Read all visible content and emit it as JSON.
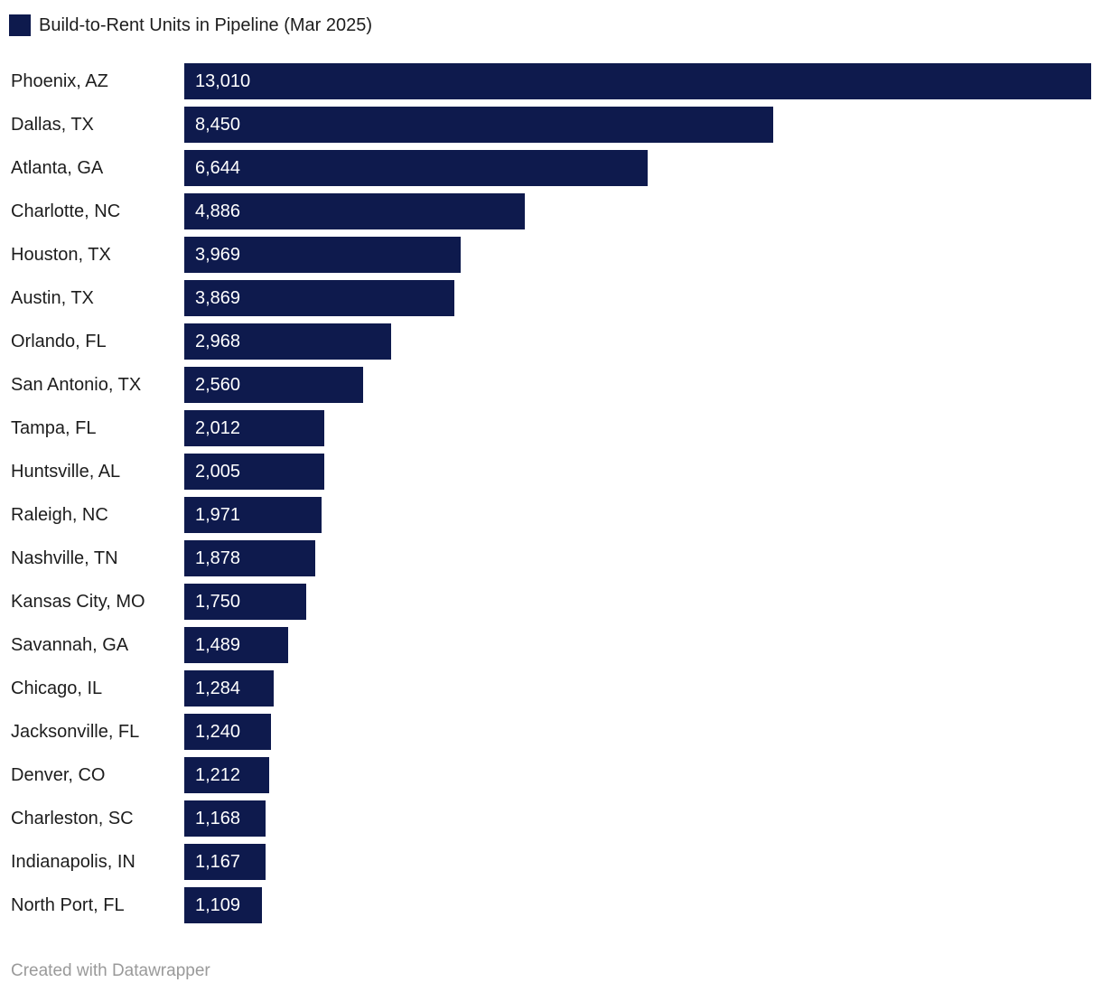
{
  "legend": {
    "label": "Build-to-Rent Units in Pipeline (Mar 2025)",
    "swatch_color": "#0e1a4d"
  },
  "footer": {
    "credit": "Created with Datawrapper"
  },
  "colors": {
    "bar": "#0e1a4d",
    "label_text": "#1d1d1d",
    "value_text": "#ffffff",
    "footer_text": "#9a9a9a",
    "background": "#ffffff"
  },
  "chart_data": {
    "type": "bar",
    "orientation": "horizontal",
    "title": "Build-to-Rent Units in Pipeline (Mar 2025)",
    "xlabel": "",
    "ylabel": "",
    "xlim": [
      0,
      13010
    ],
    "grid": false,
    "legend_position": "top-left",
    "value_label_position": "inside-start",
    "categories": [
      "Phoenix, AZ",
      "Dallas, TX",
      "Atlanta, GA",
      "Charlotte, NC",
      "Houston, TX",
      "Austin, TX",
      "Orlando, FL",
      "San Antonio, TX",
      "Tampa, FL",
      "Huntsville, AL",
      "Raleigh, NC",
      "Nashville, TN",
      "Kansas City, MO",
      "Savannah, GA",
      "Chicago, IL",
      "Jacksonville, FL",
      "Denver, CO",
      "Charleston, SC",
      "Indianapolis, IN",
      "North Port, FL"
    ],
    "values": [
      13010,
      8450,
      6644,
      4886,
      3969,
      3869,
      2968,
      2560,
      2012,
      2005,
      1971,
      1878,
      1750,
      1489,
      1284,
      1240,
      1212,
      1168,
      1167,
      1109
    ],
    "value_labels": [
      "13,010",
      "8,450",
      "6,644",
      "4,886",
      "3,969",
      "3,869",
      "2,968",
      "2,560",
      "2,012",
      "2,005",
      "1,971",
      "1,878",
      "1,750",
      "1,489",
      "1,284",
      "1,240",
      "1,212",
      "1,168",
      "1,167",
      "1,109"
    ]
  }
}
